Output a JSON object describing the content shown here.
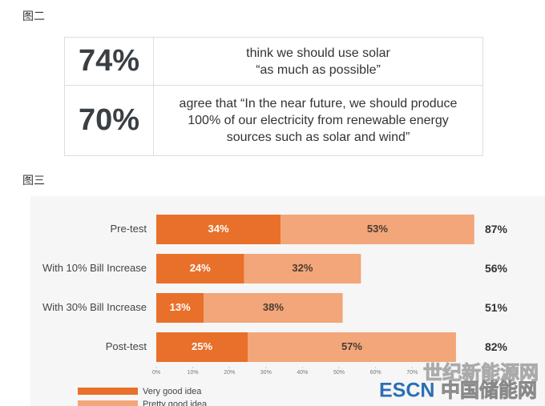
{
  "figure2_label": "图二",
  "table": {
    "rows": [
      {
        "stat": "74%",
        "lines": [
          "think we should use solar",
          "“as much as possible”"
        ]
      },
      {
        "stat": "70%",
        "lines": [
          "agree that “In the near future, we should produce",
          "100% of our electricity from renewable energy",
          "sources such as solar and wind”"
        ]
      }
    ]
  },
  "figure3_label": "图三",
  "chart_data": {
    "type": "stacked-bar-horizontal",
    "categories": [
      "Pre-test",
      "With 10% Bill Increase",
      "With 30% Bill Increase",
      "Post-test"
    ],
    "series": [
      {
        "name": "Very good idea",
        "color": "#e8702a",
        "values": [
          34,
          24,
          13,
          25
        ],
        "value_labels": [
          "34%",
          "24%",
          "13%",
          "25%"
        ]
      },
      {
        "name": "Pretty good idea",
        "color": "#f2a679",
        "values": [
          53,
          32,
          38,
          57
        ],
        "value_labels": [
          "53%",
          "32%",
          "38%",
          "57%"
        ]
      }
    ],
    "totals": [
      87,
      56,
      51,
      82
    ],
    "total_labels": [
      "87%",
      "56%",
      "51%",
      "82%"
    ],
    "xlim": [
      0,
      100
    ],
    "xticks": [
      {
        "value": 0,
        "label": "0%"
      },
      {
        "value": 10,
        "label": "10%"
      },
      {
        "value": 20,
        "label": "20%"
      },
      {
        "value": 30,
        "label": "30%"
      },
      {
        "value": 40,
        "label": "40%"
      },
      {
        "value": 50,
        "label": "50%"
      },
      {
        "value": 60,
        "label": "60%"
      },
      {
        "value": 70,
        "label": "70%"
      }
    ]
  },
  "watermark": {
    "top": "世纪新能源网",
    "brand": "ESCN",
    "site": "中国储能网"
  }
}
